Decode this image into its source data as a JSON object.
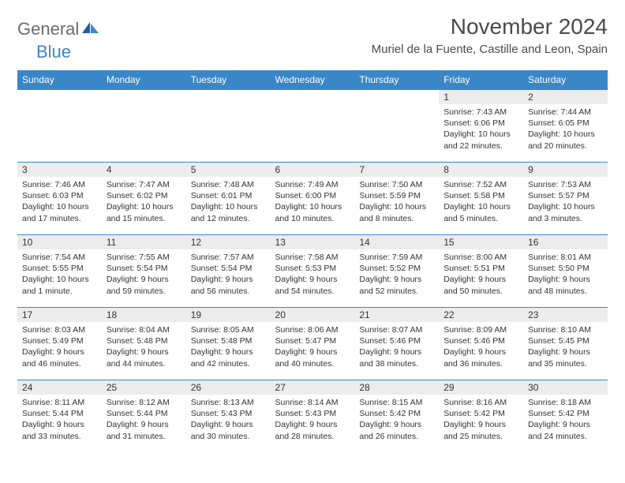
{
  "brand": {
    "name1": "General",
    "name2": "Blue"
  },
  "colors": {
    "accent": "#3a87c8",
    "header_text": "#ffffff",
    "daynum_bg": "#ececec",
    "text": "#333333",
    "title": "#4a4a4a",
    "border": "#3a87c8"
  },
  "fonts": {
    "base_family": "Arial",
    "title_size_pt": 21,
    "location_size_pt": 11,
    "header_size_pt": 9,
    "body_size_pt": 8
  },
  "title": "November 2024",
  "location": "Muriel de la Fuente, Castille and Leon, Spain",
  "weekdays": [
    "Sunday",
    "Monday",
    "Tuesday",
    "Wednesday",
    "Thursday",
    "Friday",
    "Saturday"
  ],
  "layout": {
    "columns": 7,
    "rows": 5,
    "first_weekday_index": 5
  },
  "days": [
    {
      "n": 1,
      "sunrise": "7:43 AM",
      "sunset": "6:06 PM",
      "daylight": "10 hours and 22 minutes."
    },
    {
      "n": 2,
      "sunrise": "7:44 AM",
      "sunset": "6:05 PM",
      "daylight": "10 hours and 20 minutes."
    },
    {
      "n": 3,
      "sunrise": "7:46 AM",
      "sunset": "6:03 PM",
      "daylight": "10 hours and 17 minutes."
    },
    {
      "n": 4,
      "sunrise": "7:47 AM",
      "sunset": "6:02 PM",
      "daylight": "10 hours and 15 minutes."
    },
    {
      "n": 5,
      "sunrise": "7:48 AM",
      "sunset": "6:01 PM",
      "daylight": "10 hours and 12 minutes."
    },
    {
      "n": 6,
      "sunrise": "7:49 AM",
      "sunset": "6:00 PM",
      "daylight": "10 hours and 10 minutes."
    },
    {
      "n": 7,
      "sunrise": "7:50 AM",
      "sunset": "5:59 PM",
      "daylight": "10 hours and 8 minutes."
    },
    {
      "n": 8,
      "sunrise": "7:52 AM",
      "sunset": "5:58 PM",
      "daylight": "10 hours and 5 minutes."
    },
    {
      "n": 9,
      "sunrise": "7:53 AM",
      "sunset": "5:57 PM",
      "daylight": "10 hours and 3 minutes."
    },
    {
      "n": 10,
      "sunrise": "7:54 AM",
      "sunset": "5:55 PM",
      "daylight": "10 hours and 1 minute."
    },
    {
      "n": 11,
      "sunrise": "7:55 AM",
      "sunset": "5:54 PM",
      "daylight": "9 hours and 59 minutes."
    },
    {
      "n": 12,
      "sunrise": "7:57 AM",
      "sunset": "5:54 PM",
      "daylight": "9 hours and 56 minutes."
    },
    {
      "n": 13,
      "sunrise": "7:58 AM",
      "sunset": "5:53 PM",
      "daylight": "9 hours and 54 minutes."
    },
    {
      "n": 14,
      "sunrise": "7:59 AM",
      "sunset": "5:52 PM",
      "daylight": "9 hours and 52 minutes."
    },
    {
      "n": 15,
      "sunrise": "8:00 AM",
      "sunset": "5:51 PM",
      "daylight": "9 hours and 50 minutes."
    },
    {
      "n": 16,
      "sunrise": "8:01 AM",
      "sunset": "5:50 PM",
      "daylight": "9 hours and 48 minutes."
    },
    {
      "n": 17,
      "sunrise": "8:03 AM",
      "sunset": "5:49 PM",
      "daylight": "9 hours and 46 minutes."
    },
    {
      "n": 18,
      "sunrise": "8:04 AM",
      "sunset": "5:48 PM",
      "daylight": "9 hours and 44 minutes."
    },
    {
      "n": 19,
      "sunrise": "8:05 AM",
      "sunset": "5:48 PM",
      "daylight": "9 hours and 42 minutes."
    },
    {
      "n": 20,
      "sunrise": "8:06 AM",
      "sunset": "5:47 PM",
      "daylight": "9 hours and 40 minutes."
    },
    {
      "n": 21,
      "sunrise": "8:07 AM",
      "sunset": "5:46 PM",
      "daylight": "9 hours and 38 minutes."
    },
    {
      "n": 22,
      "sunrise": "8:09 AM",
      "sunset": "5:46 PM",
      "daylight": "9 hours and 36 minutes."
    },
    {
      "n": 23,
      "sunrise": "8:10 AM",
      "sunset": "5:45 PM",
      "daylight": "9 hours and 35 minutes."
    },
    {
      "n": 24,
      "sunrise": "8:11 AM",
      "sunset": "5:44 PM",
      "daylight": "9 hours and 33 minutes."
    },
    {
      "n": 25,
      "sunrise": "8:12 AM",
      "sunset": "5:44 PM",
      "daylight": "9 hours and 31 minutes."
    },
    {
      "n": 26,
      "sunrise": "8:13 AM",
      "sunset": "5:43 PM",
      "daylight": "9 hours and 30 minutes."
    },
    {
      "n": 27,
      "sunrise": "8:14 AM",
      "sunset": "5:43 PM",
      "daylight": "9 hours and 28 minutes."
    },
    {
      "n": 28,
      "sunrise": "8:15 AM",
      "sunset": "5:42 PM",
      "daylight": "9 hours and 26 minutes."
    },
    {
      "n": 29,
      "sunrise": "8:16 AM",
      "sunset": "5:42 PM",
      "daylight": "9 hours and 25 minutes."
    },
    {
      "n": 30,
      "sunrise": "8:18 AM",
      "sunset": "5:42 PM",
      "daylight": "9 hours and 24 minutes."
    }
  ],
  "labels": {
    "sunrise": "Sunrise:",
    "sunset": "Sunset:",
    "daylight": "Daylight:"
  }
}
